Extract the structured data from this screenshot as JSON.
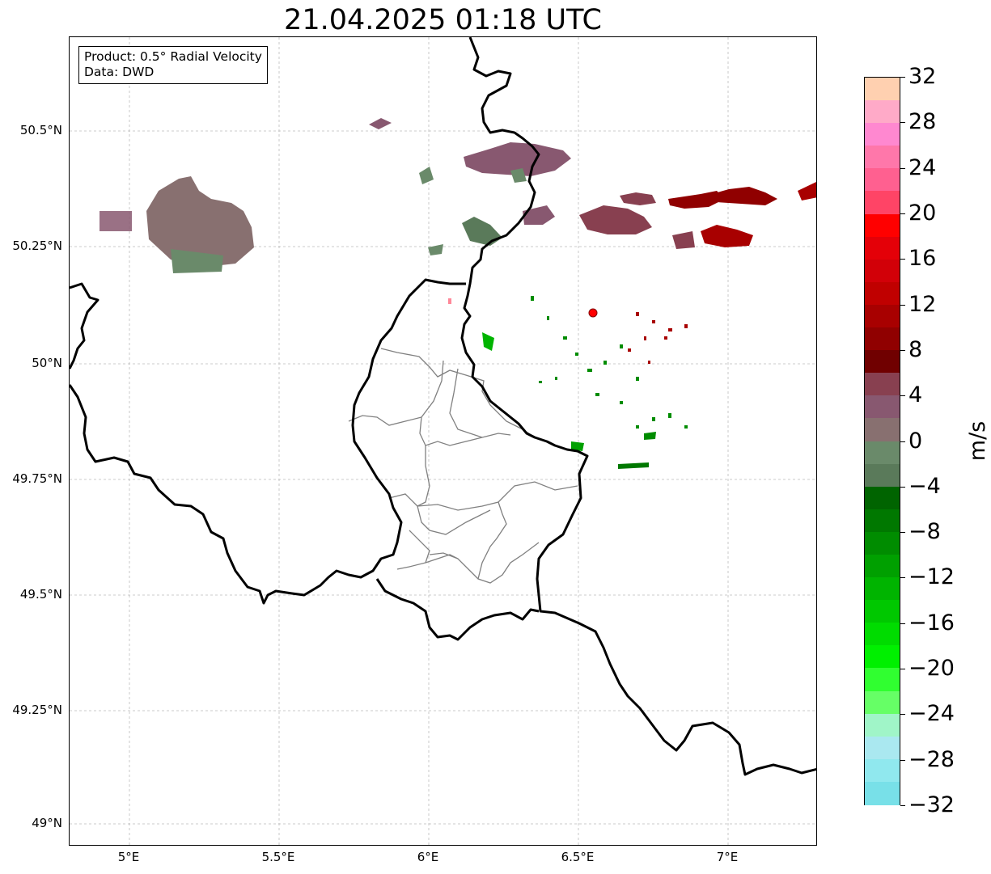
{
  "title": "21.04.2025 01:18 UTC",
  "info": {
    "line1": "Product: 0.5° Radial Velocity",
    "line2": "Data: DWD"
  },
  "map": {
    "lon_ticks": [
      "5°E",
      "5.5°E",
      "6°E",
      "6.5°E",
      "7°E"
    ],
    "lat_ticks": [
      "50.5°N",
      "50.25°N",
      "50°N",
      "49.75°N",
      "49.5°N",
      "49.25°N",
      "49°N"
    ],
    "radar_site_color": "#ff0000"
  },
  "colorbar": {
    "label": "m/s",
    "ticks": [
      "32",
      "28",
      "24",
      "20",
      "16",
      "12",
      "8",
      "4",
      "0",
      "−4",
      "−8",
      "−12",
      "−16",
      "−20",
      "−24",
      "−28",
      "−32"
    ],
    "colors_top_to_bottom": [
      "#ffd0b0",
      "#ffaac8",
      "#ff88d0",
      "#ff77aa",
      "#ff6090",
      "#ff4466",
      "#ff0000",
      "#e40008",
      "#d20008",
      "#c00000",
      "#a80000",
      "#900000",
      "#700000",
      "#884050",
      "#885870",
      "#887070",
      "#6a8a6a",
      "#5a7a5a",
      "#006400",
      "#007800",
      "#008c00",
      "#00a000",
      "#00b400",
      "#00c800",
      "#00dc00",
      "#00f000",
      "#30ff30",
      "#66ff66",
      "#a0f5c8",
      "#aae8f0",
      "#90e8ee",
      "#78e0e8"
    ]
  }
}
